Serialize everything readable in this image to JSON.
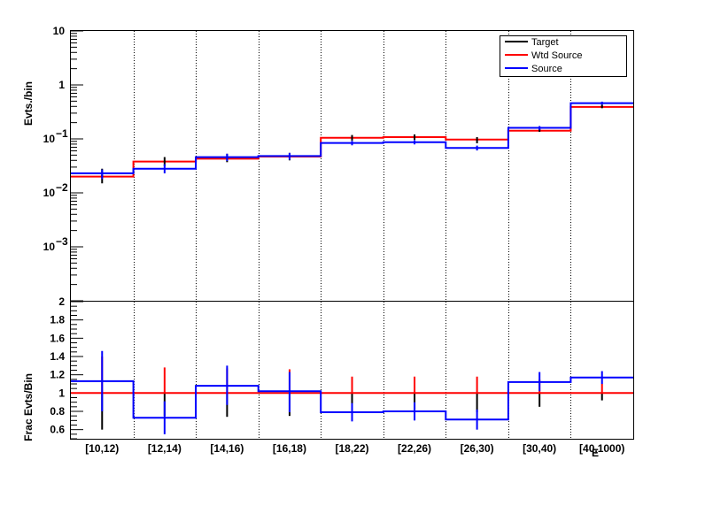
{
  "colors": {
    "target": "#000000",
    "wtd_source": "#ff0000",
    "source": "#0000ff",
    "frame": "#000000",
    "divider": "#000000"
  },
  "chart_data": [
    {
      "type": "line",
      "step": true,
      "yscale": "log",
      "ylabel": "Evts./bin",
      "ylim": [
        0.0001,
        10
      ],
      "yticks": [
        {
          "value": 10,
          "mant": "10",
          "exp": ""
        },
        {
          "value": 1,
          "mant": "1",
          "exp": ""
        },
        {
          "value": 0.1,
          "mant": "10",
          "exp": "−1"
        },
        {
          "value": 0.01,
          "mant": "10",
          "exp": "−2"
        },
        {
          "value": 0.001,
          "mant": "10",
          "exp": "−3"
        }
      ],
      "categories": [
        "[10,12)",
        "[12,14)",
        "[14,16)",
        "[16,18)",
        "[18,22)",
        "[22,26)",
        "[26,30)",
        "[30,40)",
        "[40,1000)"
      ],
      "legend": {
        "position": "top-right",
        "entries": [
          "Target",
          "Wtd Source",
          "Source"
        ]
      },
      "grid": "vertical dotted bin dividers",
      "series": [
        {
          "name": "Target",
          "values": [
            0.021,
            0.038,
            0.045,
            0.047,
            0.105,
            0.108,
            0.095,
            0.148,
            0.4
          ],
          "err_low": [
            0.015,
            0.031,
            0.037,
            0.04,
            0.093,
            0.096,
            0.083,
            0.135,
            0.37
          ],
          "err_high": [
            0.028,
            0.046,
            0.053,
            0.055,
            0.118,
            0.121,
            0.108,
            0.162,
            0.43
          ]
        },
        {
          "name": "Wtd Source",
          "values": [
            0.02,
            0.038,
            0.043,
            0.047,
            0.105,
            0.108,
            0.097,
            0.142,
            0.39
          ]
        },
        {
          "name": "Source",
          "values": [
            0.023,
            0.028,
            0.046,
            0.048,
            0.084,
            0.087,
            0.068,
            0.16,
            0.46
          ],
          "err_low": [
            0.018,
            0.023,
            0.039,
            0.041,
            0.076,
            0.079,
            0.061,
            0.147,
            0.43
          ],
          "err_high": [
            0.027,
            0.034,
            0.053,
            0.055,
            0.092,
            0.095,
            0.075,
            0.173,
            0.49
          ]
        }
      ]
    },
    {
      "type": "line",
      "step": true,
      "ylabel": "Frac Evts/Bin",
      "ylim": [
        0.5,
        2
      ],
      "yticks": [
        "0.6",
        "0.8",
        "1",
        "1.2",
        "1.4",
        "1.6",
        "1.8",
        "2"
      ],
      "xlabel": "E",
      "categories": [
        "[10,12)",
        "[12,14)",
        "[14,16)",
        "[16,18)",
        "[18,22)",
        "[22,26)",
        "[26,30)",
        "[30,40)",
        "[40,1000)"
      ],
      "series": [
        {
          "name": "Target",
          "err_low": [
            0.6,
            0.75,
            0.74,
            0.75,
            0.82,
            0.82,
            0.79,
            0.85,
            0.92
          ],
          "err_high": [
            1.4,
            1.28,
            1.27,
            1.26,
            1.18,
            1.18,
            1.18,
            1.15,
            1.1
          ]
        },
        {
          "name": "Wtd Source",
          "values": [
            1,
            1,
            1,
            1,
            1,
            1,
            1,
            1,
            1
          ]
        },
        {
          "name": "Source",
          "values": [
            1.13,
            0.73,
            1.08,
            1.02,
            0.79,
            0.8,
            0.71,
            1.12,
            1.17
          ],
          "err_low": [
            0.8,
            0.55,
            0.87,
            0.79,
            0.69,
            0.7,
            0.6,
            1.02,
            1.1
          ],
          "err_high": [
            1.46,
            0.91,
            1.3,
            1.23,
            0.89,
            0.9,
            0.82,
            1.23,
            1.24
          ]
        }
      ]
    }
  ]
}
